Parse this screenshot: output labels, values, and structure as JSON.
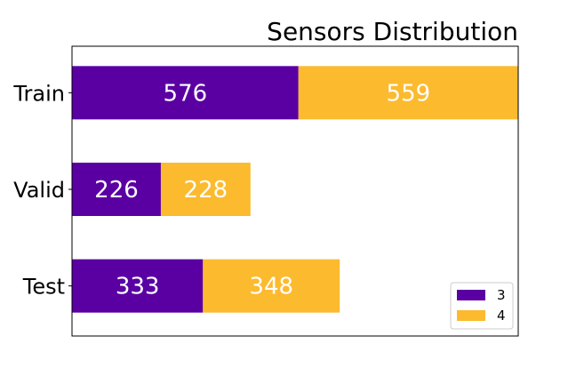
{
  "chart_data": {
    "type": "bar",
    "orientation": "horizontal",
    "stacked": true,
    "title": "Sensors Distribution",
    "categories": [
      "Train",
      "Valid",
      "Test"
    ],
    "series": [
      {
        "name": "3",
        "values": [
          576,
          226,
          333
        ],
        "color": "#5a00a3"
      },
      {
        "name": "4",
        "values": [
          559,
          228,
          348
        ],
        "color": "#fcba2e"
      }
    ],
    "xlim": [
      0,
      1135
    ],
    "x_ticks_visible": false,
    "grid": false,
    "legend_position": "lower-right",
    "data_labels": true
  }
}
